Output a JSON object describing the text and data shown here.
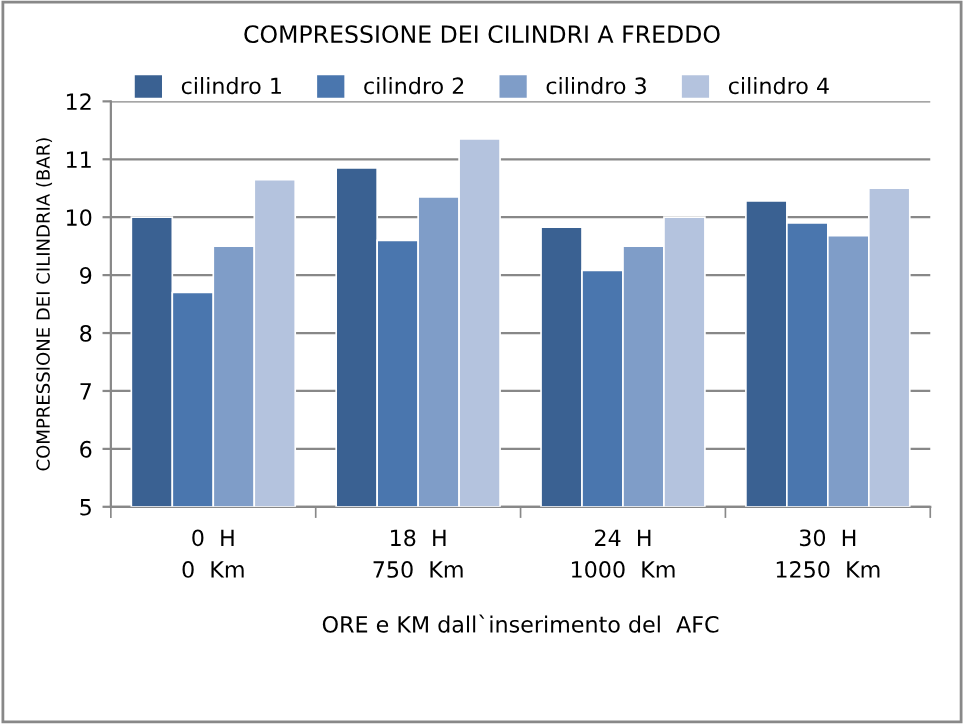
{
  "chart_data": {
    "type": "bar",
    "title": "COMPRESSIONE DEI CILINDRI A FREDDO",
    "xlabel": "ORE e KM dall`inserimento del  AFC",
    "ylabel": "COMPRESSIONE DEI CILINDRIA (BAR)",
    "categories": [
      "0  H\n0  Km",
      "18  H\n750  Km",
      "24  H\n1000  Km",
      "30  H\n1250  Km"
    ],
    "series": [
      {
        "name": "cilindro 1",
        "color": "#3a6192",
        "values": [
          10.0,
          10.85,
          9.83,
          10.28
        ]
      },
      {
        "name": "cilindro 2",
        "color": "#4a76ae",
        "values": [
          8.7,
          9.6,
          9.08,
          9.9
        ]
      },
      {
        "name": "cilindro 3",
        "color": "#7f9dc8",
        "values": [
          9.5,
          10.35,
          9.5,
          9.68
        ]
      },
      {
        "name": "cilindro 4",
        "color": "#b4c3de",
        "values": [
          10.65,
          11.35,
          10.0,
          10.5
        ]
      }
    ],
    "ylim": [
      5,
      12
    ],
    "yticks": [
      5,
      6,
      7,
      8,
      9,
      10,
      11,
      12
    ],
    "grid": "y",
    "legend": "top"
  }
}
